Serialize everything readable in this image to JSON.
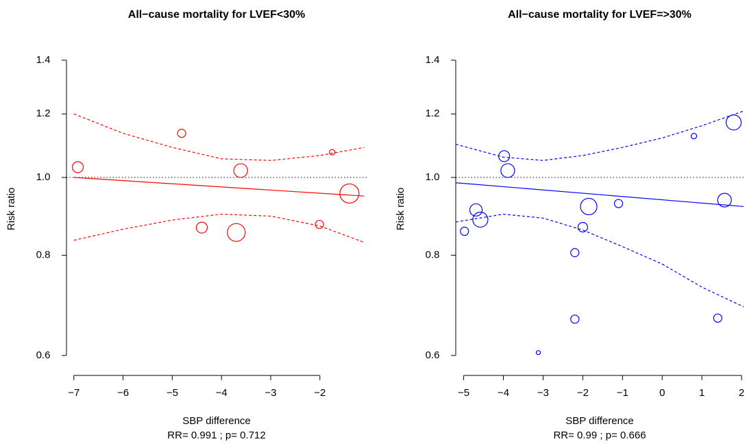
{
  "chart_data": [
    {
      "type": "bubble",
      "title": "All−cause mortality for LVEF<30%",
      "xlabel": "SBP difference",
      "subtitle": "RR= 0.991 ; p= 0.712",
      "ylabel": "Risk ratio",
      "color": "#ff0000",
      "ylog": true,
      "hline": 1,
      "xlim": [
        -7.15,
        -1.05
      ],
      "ylim": [
        0.57,
        1.45
      ],
      "xticks": [
        {
          "value": -7,
          "label": "−7"
        },
        {
          "value": -6,
          "label": "−6"
        },
        {
          "value": -5,
          "label": "−5"
        },
        {
          "value": -4,
          "label": "−4"
        },
        {
          "value": -3,
          "label": "−3"
        },
        {
          "value": -2,
          "label": "−2"
        }
      ],
      "yticks": [
        0.6,
        0.8,
        {
          "value": 1,
          "label": "1.0"
        },
        1.2,
        1.4
      ],
      "points": {
        "x": [
          -6.92,
          -4.81,
          -3.61,
          -4.4,
          -3.7,
          -2.01,
          -1.75,
          -1.4
        ],
        "values": [
          1.03,
          1.135,
          1.02,
          0.866,
          0.854,
          0.874,
          1.075,
          0.955
        ],
        "sizes": [
          8,
          6,
          10,
          8,
          13,
          6,
          4,
          14
        ]
      },
      "fit": {
        "x": [
          -7,
          -1.1
        ],
        "values": [
          1.0,
          0.948
        ]
      },
      "ci_upper": {
        "x": [
          -7,
          -6,
          -5,
          -4,
          -3,
          -2,
          -1.1
        ],
        "values": [
          1.2,
          1.135,
          1.09,
          1.055,
          1.05,
          1.065,
          1.09
        ]
      },
      "ci_lower": {
        "x": [
          -7,
          -6,
          -5,
          -4,
          -3,
          -2,
          -1.1
        ],
        "values": [
          0.835,
          0.862,
          0.885,
          0.9,
          0.895,
          0.87,
          0.83
        ]
      }
    },
    {
      "type": "bubble",
      "title": "All−cause mortality for LVEF=>30%",
      "xlabel": "SBP difference",
      "subtitle": "RR= 0.99 ; p= 0.666",
      "ylabel": "Risk ratio",
      "color": "#0000ff",
      "ylog": true,
      "hline": 1,
      "xlim": [
        -5.2,
        2.05
      ],
      "ylim": [
        0.57,
        1.45
      ],
      "xticks": [
        {
          "value": -5,
          "label": "−5"
        },
        {
          "value": -4,
          "label": "−4"
        },
        {
          "value": -3,
          "label": "−3"
        },
        {
          "value": -2,
          "label": "−2"
        },
        {
          "value": -1,
          "label": "−1"
        },
        0,
        1,
        2
      ],
      "yticks": [
        0.6,
        0.8,
        {
          "value": 1,
          "label": "1.0"
        },
        1.2,
        1.4
      ],
      "points": {
        "x": [
          -4.98,
          -4.69,
          -4.58,
          -3.98,
          -3.89,
          -3.12,
          -2.2,
          -2.2,
          -2.0,
          -1.85,
          -1.1,
          0.8,
          1.57,
          1.4,
          1.8
        ],
        "values": [
          0.857,
          0.911,
          0.886,
          1.063,
          1.02,
          0.605,
          0.806,
          0.666,
          0.867,
          0.92,
          0.928,
          1.126,
          0.937,
          0.668,
          1.171
        ],
        "sizes": [
          6,
          9,
          11,
          8,
          10,
          3,
          6,
          6,
          7,
          12,
          6,
          4,
          10,
          6,
          11
        ]
      },
      "fit": {
        "x": [
          -5.2,
          2.05
        ],
        "values": [
          0.985,
          0.92
        ]
      },
      "ci_upper": {
        "x": [
          -5.2,
          -4,
          -3,
          -2,
          -1,
          0,
          1,
          2.05
        ],
        "values": [
          1.1,
          1.06,
          1.05,
          1.065,
          1.09,
          1.12,
          1.16,
          1.21
        ]
      },
      "ci_lower": {
        "x": [
          -5.2,
          -4,
          -3,
          -2,
          -1,
          0,
          1,
          2.05
        ],
        "values": [
          0.88,
          0.9,
          0.89,
          0.86,
          0.82,
          0.78,
          0.73,
          0.69
        ]
      }
    }
  ]
}
